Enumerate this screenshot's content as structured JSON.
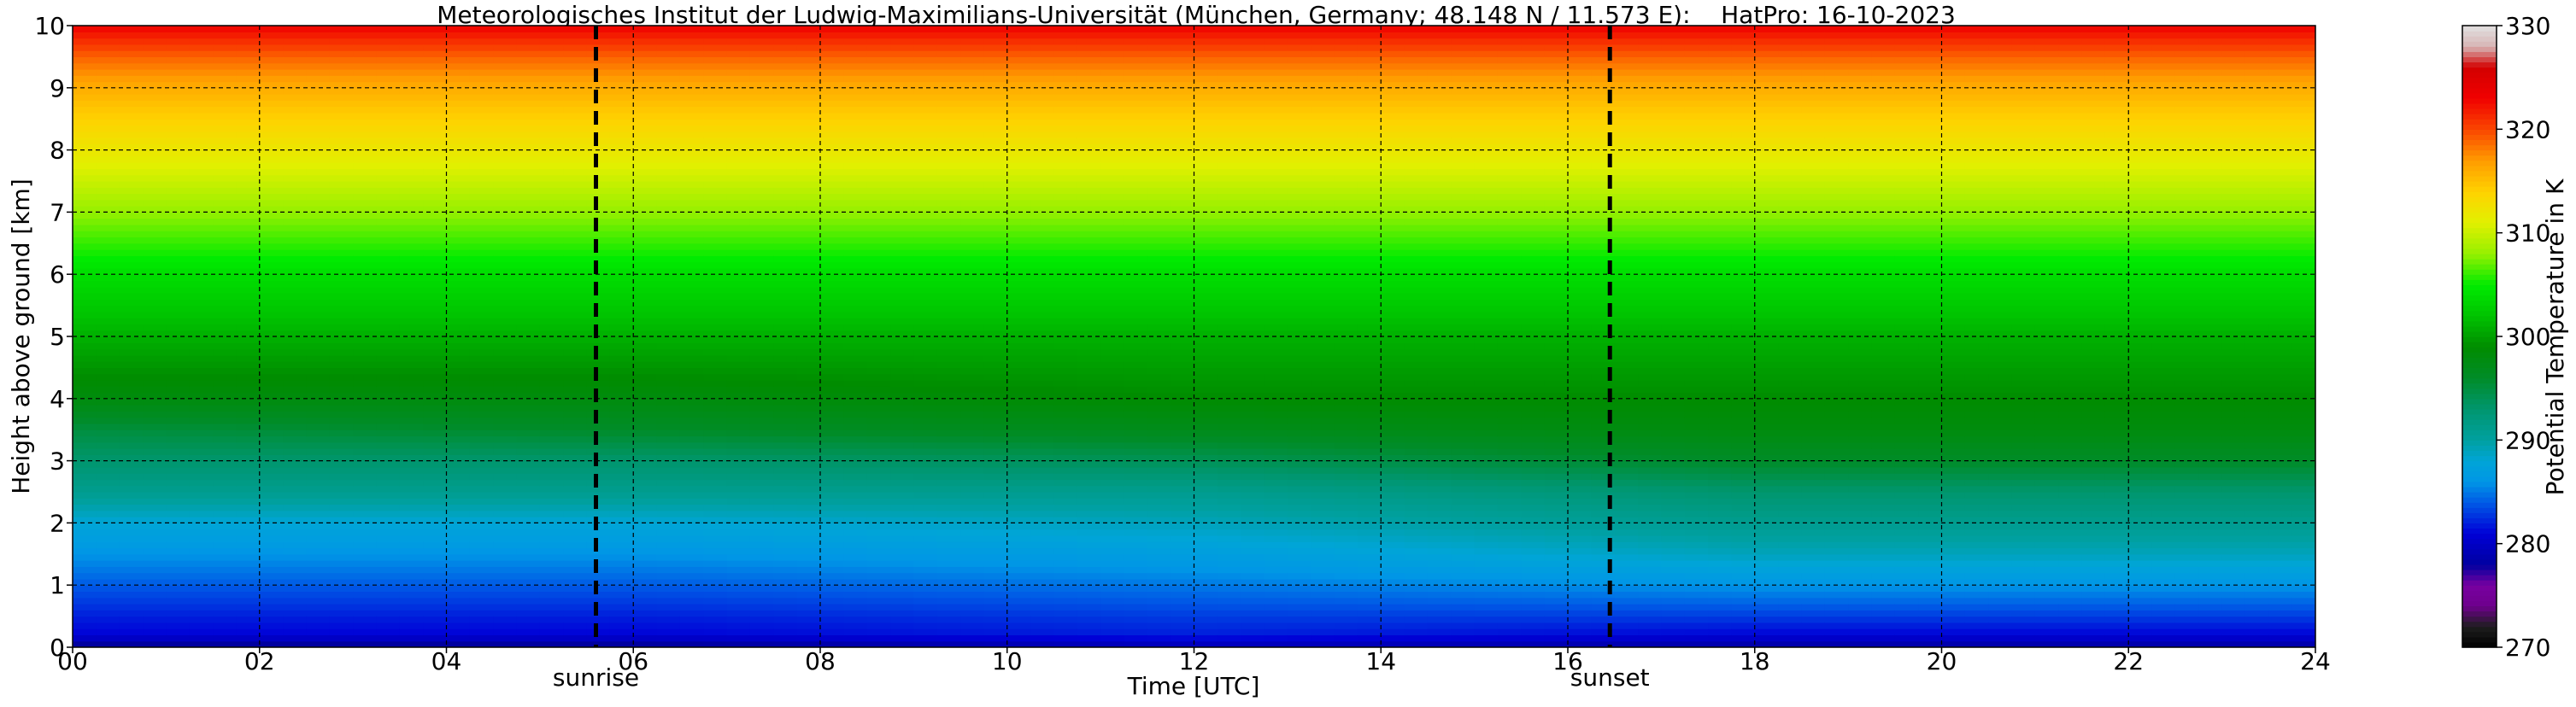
{
  "chart_data": {
    "type": "heatmap",
    "title": "Meteorologisches Institut der Ludwig-Maximilians-Universität (München, Germany; 48.148 N / 11.573 E):    HatPro: 16-10-2023",
    "xlabel": "Time [UTC]",
    "ylabel": "Height above ground [km]",
    "xlim": [
      0,
      24
    ],
    "ylim": [
      0,
      10
    ],
    "x_ticks": [
      "00",
      "02",
      "04",
      "06",
      "08",
      "10",
      "12",
      "14",
      "16",
      "18",
      "20",
      "22",
      "24"
    ],
    "y_ticks": [
      "0",
      "1",
      "2",
      "3",
      "4",
      "5",
      "6",
      "7",
      "8",
      "9",
      "10"
    ],
    "grid": true,
    "colorbar": {
      "label": "Potential Temperature in K",
      "range": [
        270,
        330
      ],
      "ticks": [
        "270",
        "280",
        "290",
        "300",
        "310",
        "320",
        "330"
      ]
    },
    "annotations": [
      {
        "label": "sunrise",
        "x": 5.6
      },
      {
        "label": "sunset",
        "x": 16.45
      }
    ],
    "potential_temperature_profile": {
      "heights_km": [
        0,
        0.2,
        0.5,
        1.0,
        1.5,
        2.0,
        2.5,
        3.0,
        3.5,
        4.0,
        5.0,
        6.0,
        7.0,
        8.0,
        8.5,
        9.0,
        9.5,
        10.0
      ],
      "times_h": [
        0,
        6,
        12,
        18,
        24
      ],
      "values_K": [
        [
          277,
          281,
          282,
          284,
          286,
          288,
          291,
          293,
          295,
          298,
          301,
          304,
          308,
          312,
          314,
          316,
          319,
          323
        ],
        [
          277,
          281,
          282,
          284,
          286,
          288,
          291,
          293,
          296,
          298,
          301,
          304,
          308,
          312,
          314,
          316,
          319,
          323
        ],
        [
          279,
          282,
          283,
          285,
          287,
          289,
          291,
          294,
          297,
          299,
          301,
          304,
          308,
          312,
          314,
          316,
          319,
          323
        ],
        [
          278,
          281,
          283,
          286,
          289,
          291,
          293,
          296,
          298,
          299,
          301,
          304,
          308,
          312,
          314,
          316,
          319,
          323
        ],
        [
          278,
          281,
          283,
          286,
          289,
          291,
          293,
          296,
          298,
          299,
          301,
          304,
          308,
          312,
          314,
          316,
          319,
          323
        ]
      ]
    }
  }
}
